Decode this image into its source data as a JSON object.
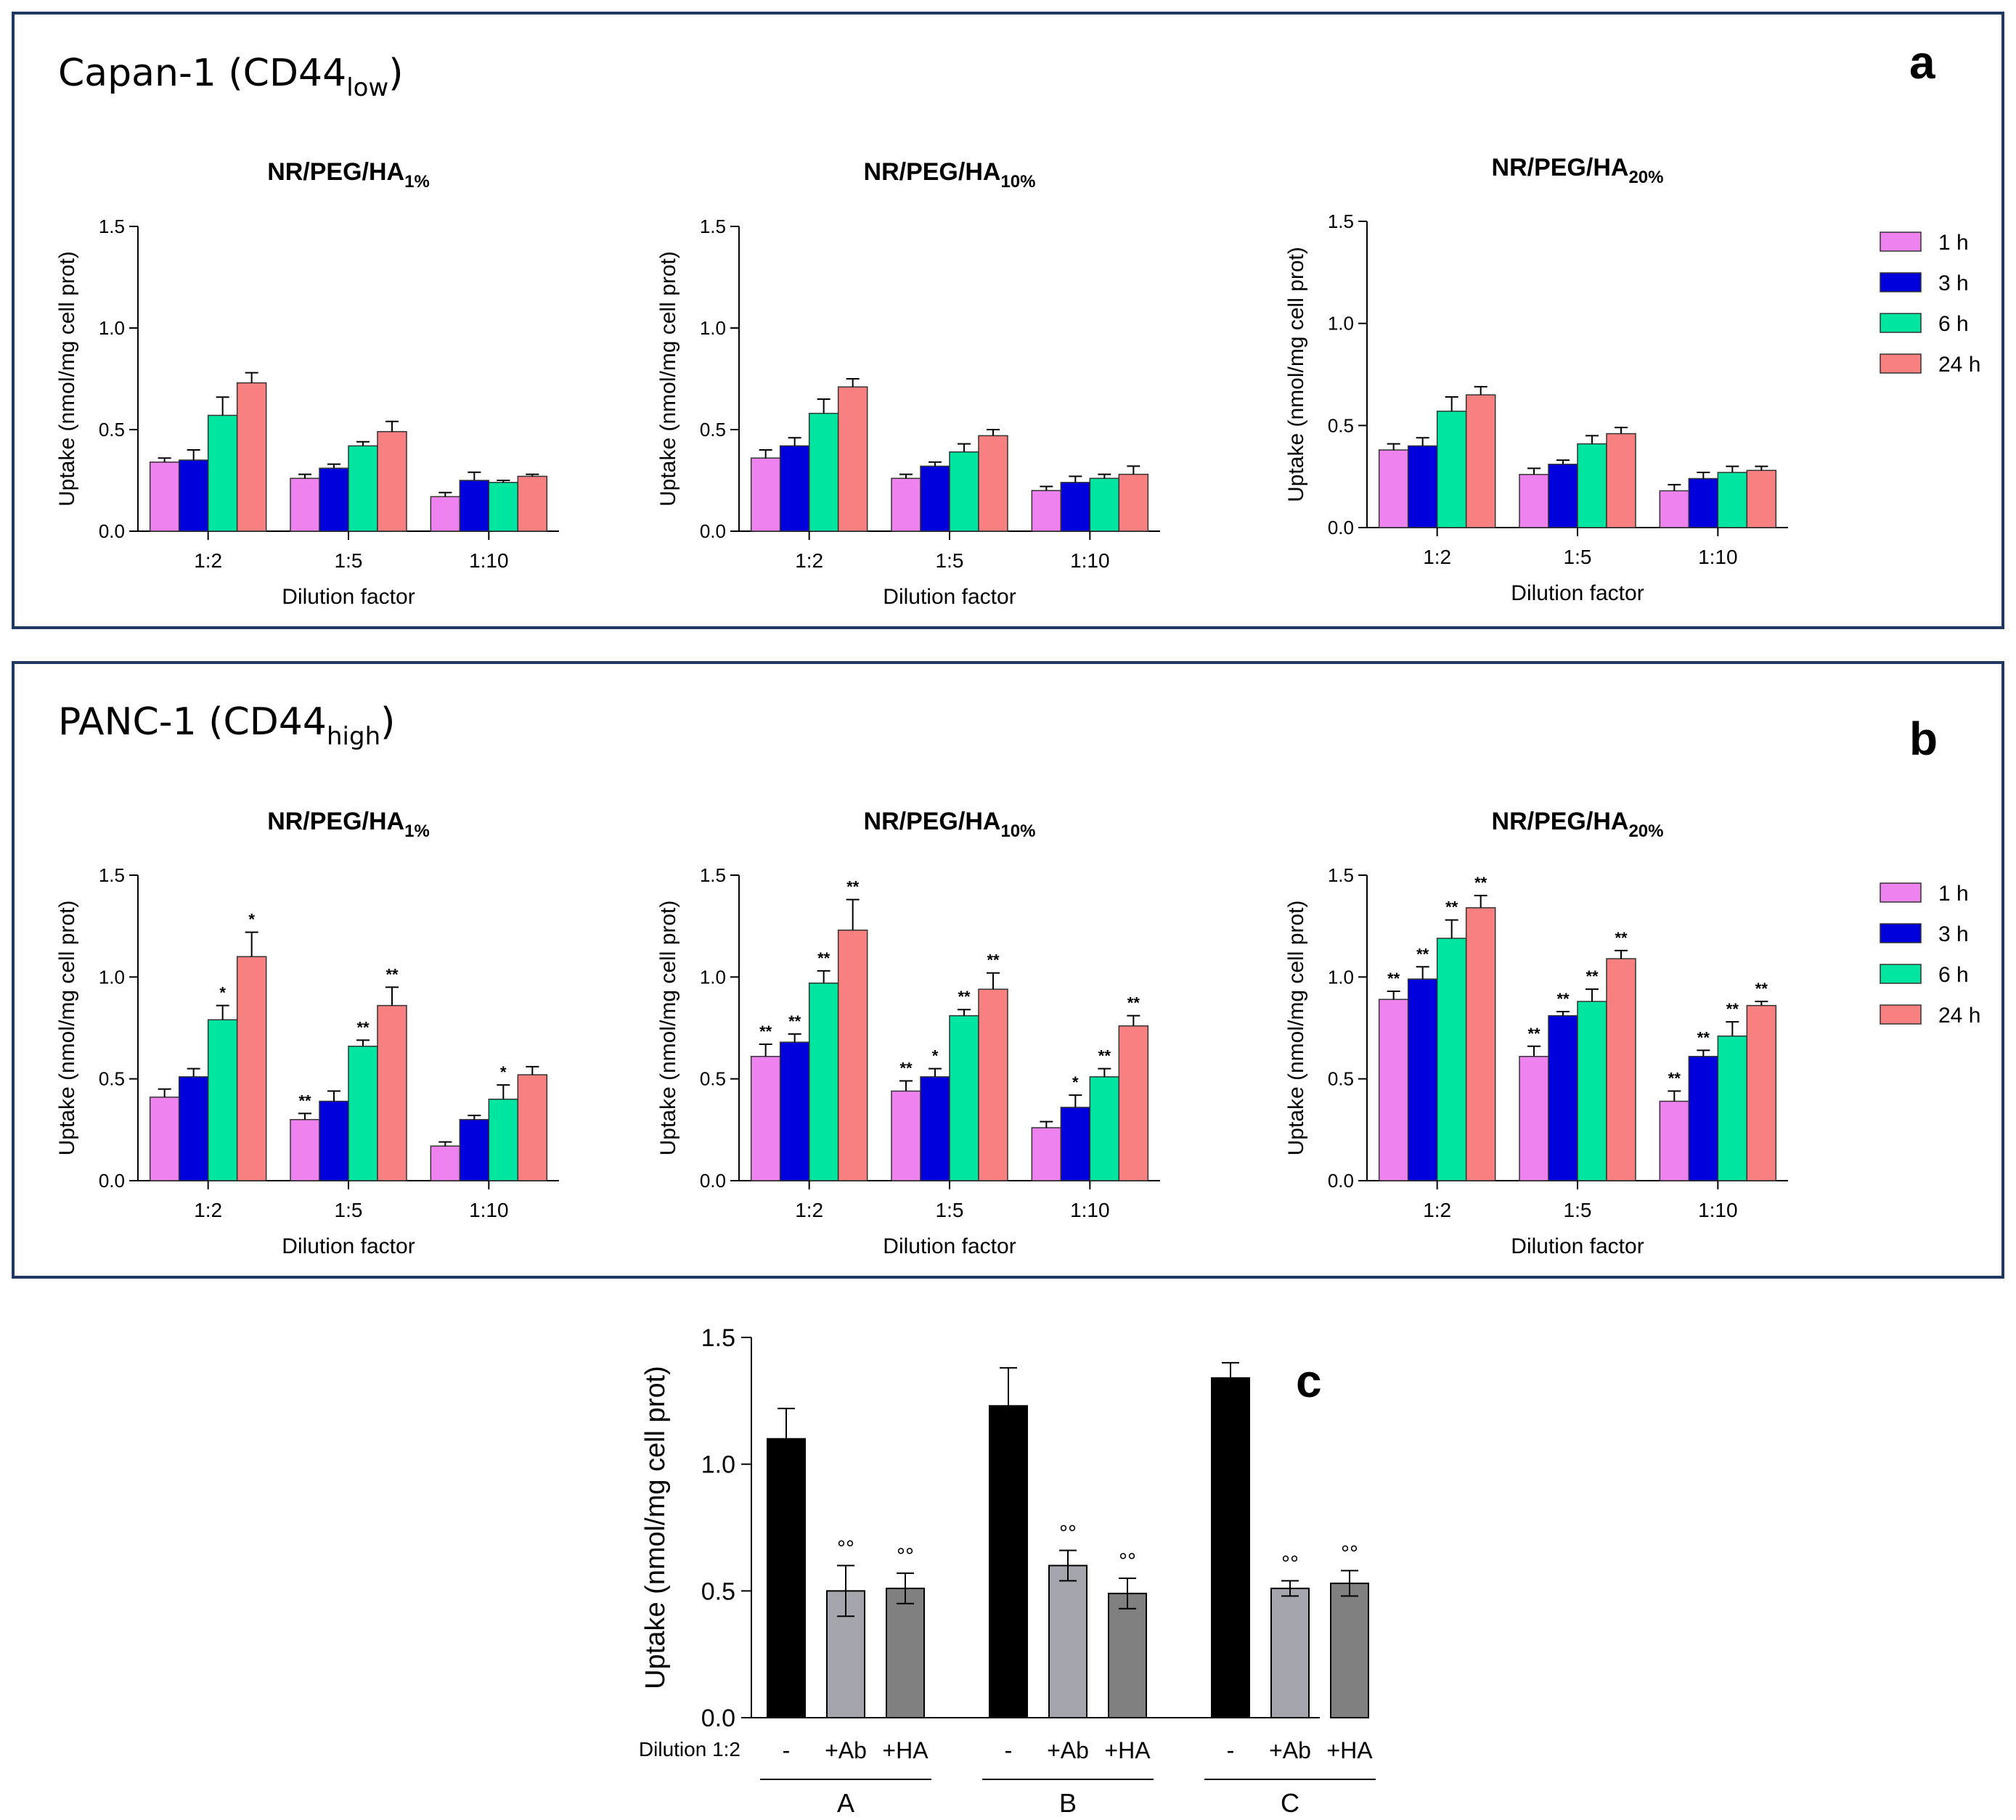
{
  "colors": {
    "1 h": "#ee82ee",
    "3 h": "#0000dd",
    "6 h": "#00e6a0",
    "24 h": "#f88080",
    "frame": "#1f3864",
    "c_bars": [
      "#000000",
      "#a5a5ad",
      "#808080"
    ]
  },
  "panel_a": {
    "title_main": "Capan-1 (CD44",
    "title_sub": "low",
    "title_close": ")",
    "letter": "a"
  },
  "panel_b": {
    "title_main": "PANC-1 (CD44",
    "title_sub": "high",
    "title_close": ")",
    "letter": "b"
  },
  "panel_c": {
    "letter": "c",
    "dilution_label": "Dilution 1:2"
  },
  "legend": [
    "1 h",
    "3 h",
    "6 h",
    "24 h"
  ],
  "chart_data": [
    {
      "panel": "a",
      "type": "bar",
      "title_main": "NR/PEG/HA",
      "title_sub": "1%",
      "categories": [
        "1:2",
        "1:5",
        "1:10"
      ],
      "xlabel": "Dilution factor",
      "ylabel": "Uptake (nmol/mg cell prot)",
      "ylim": [
        0,
        1.5
      ],
      "yticks": [
        "0.0",
        "0.5",
        "1.0",
        "1.5"
      ],
      "series": [
        {
          "name": "1 h",
          "values": [
            0.34,
            0.26,
            0.17
          ],
          "errors": [
            0.02,
            0.02,
            0.02
          ],
          "sig": [
            "",
            "",
            ""
          ]
        },
        {
          "name": "3 h",
          "values": [
            0.35,
            0.31,
            0.25
          ],
          "errors": [
            0.05,
            0.02,
            0.04
          ],
          "sig": [
            "",
            "",
            ""
          ]
        },
        {
          "name": "6 h",
          "values": [
            0.57,
            0.42,
            0.24
          ],
          "errors": [
            0.09,
            0.02,
            0.01
          ],
          "sig": [
            "",
            "",
            ""
          ]
        },
        {
          "name": "24 h",
          "values": [
            0.73,
            0.49,
            0.27
          ],
          "errors": [
            0.05,
            0.05,
            0.01
          ],
          "sig": [
            "",
            "",
            ""
          ]
        }
      ]
    },
    {
      "panel": "a",
      "type": "bar",
      "title_main": "NR/PEG/HA",
      "title_sub": "10%",
      "categories": [
        "1:2",
        "1:5",
        "1:10"
      ],
      "xlabel": "Dilution factor",
      "ylabel": "Uptake (nmol/mg cell prot)",
      "ylim": [
        0,
        1.5
      ],
      "yticks": [
        "0.0",
        "0.5",
        "1.0",
        "1.5"
      ],
      "series": [
        {
          "name": "1 h",
          "values": [
            0.36,
            0.26,
            0.2
          ],
          "errors": [
            0.04,
            0.02,
            0.02
          ],
          "sig": [
            "",
            "",
            ""
          ]
        },
        {
          "name": "3 h",
          "values": [
            0.42,
            0.32,
            0.24
          ],
          "errors": [
            0.04,
            0.02,
            0.03
          ],
          "sig": [
            "",
            "",
            ""
          ]
        },
        {
          "name": "6 h",
          "values": [
            0.58,
            0.39,
            0.26
          ],
          "errors": [
            0.07,
            0.04,
            0.02
          ],
          "sig": [
            "",
            "",
            ""
          ]
        },
        {
          "name": "24 h",
          "values": [
            0.71,
            0.47,
            0.28
          ],
          "errors": [
            0.04,
            0.03,
            0.04
          ],
          "sig": [
            "",
            "",
            ""
          ]
        }
      ]
    },
    {
      "panel": "a",
      "type": "bar",
      "title_main": "NR/PEG/HA",
      "title_sub": "20%",
      "categories": [
        "1:2",
        "1:5",
        "1:10"
      ],
      "xlabel": "Dilution factor",
      "ylabel": "Uptake (nmol/mg cell prot)",
      "ylim": [
        0,
        1.5
      ],
      "yticks": [
        "0.0",
        "0.5",
        "1.0",
        "1.5"
      ],
      "series": [
        {
          "name": "1 h",
          "values": [
            0.38,
            0.26,
            0.18
          ],
          "errors": [
            0.03,
            0.03,
            0.03
          ],
          "sig": [
            "",
            "",
            ""
          ]
        },
        {
          "name": "3 h",
          "values": [
            0.4,
            0.31,
            0.24
          ],
          "errors": [
            0.04,
            0.02,
            0.03
          ],
          "sig": [
            "",
            "",
            ""
          ]
        },
        {
          "name": "6 h",
          "values": [
            0.57,
            0.41,
            0.27
          ],
          "errors": [
            0.07,
            0.04,
            0.03
          ],
          "sig": [
            "",
            "",
            ""
          ]
        },
        {
          "name": "24 h",
          "values": [
            0.65,
            0.46,
            0.28
          ],
          "errors": [
            0.04,
            0.03,
            0.02
          ],
          "sig": [
            "",
            "",
            ""
          ]
        }
      ]
    },
    {
      "panel": "b",
      "type": "bar",
      "title_main": "NR/PEG/HA",
      "title_sub": "1%",
      "categories": [
        "1:2",
        "1:5",
        "1:10"
      ],
      "xlabel": "Dilution factor",
      "ylabel": "Uptake (nmol/mg cell prot)",
      "ylim": [
        0,
        1.5
      ],
      "yticks": [
        "0.0",
        "0.5",
        "1.0",
        "1.5"
      ],
      "series": [
        {
          "name": "1 h",
          "values": [
            0.41,
            0.3,
            0.17
          ],
          "errors": [
            0.04,
            0.03,
            0.02
          ],
          "sig": [
            "",
            "**",
            ""
          ]
        },
        {
          "name": "3 h",
          "values": [
            0.51,
            0.39,
            0.3
          ],
          "errors": [
            0.04,
            0.05,
            0.02
          ],
          "sig": [
            "",
            "",
            ""
          ]
        },
        {
          "name": "6 h",
          "values": [
            0.79,
            0.66,
            0.4
          ],
          "errors": [
            0.07,
            0.03,
            0.07
          ],
          "sig": [
            "*",
            "**",
            "*"
          ]
        },
        {
          "name": "24 h",
          "values": [
            1.1,
            0.86,
            0.52
          ],
          "errors": [
            0.12,
            0.09,
            0.04
          ],
          "sig": [
            "*",
            "**",
            ""
          ]
        }
      ]
    },
    {
      "panel": "b",
      "type": "bar",
      "title_main": "NR/PEG/HA",
      "title_sub": "10%",
      "categories": [
        "1:2",
        "1:5",
        "1:10"
      ],
      "xlabel": "Dilution factor",
      "ylabel": "Uptake (nmol/mg cell prot)",
      "ylim": [
        0,
        1.5
      ],
      "yticks": [
        "0.0",
        "0.5",
        "1.0",
        "1.5"
      ],
      "series": [
        {
          "name": "1 h",
          "values": [
            0.61,
            0.44,
            0.26
          ],
          "errors": [
            0.06,
            0.05,
            0.03
          ],
          "sig": [
            "**",
            "**",
            ""
          ]
        },
        {
          "name": "3 h",
          "values": [
            0.68,
            0.51,
            0.36
          ],
          "errors": [
            0.04,
            0.04,
            0.06
          ],
          "sig": [
            "**",
            "*",
            "*"
          ]
        },
        {
          "name": "6 h",
          "values": [
            0.97,
            0.81,
            0.51
          ],
          "errors": [
            0.06,
            0.03,
            0.04
          ],
          "sig": [
            "**",
            "**",
            "**"
          ]
        },
        {
          "name": "24 h",
          "values": [
            1.23,
            0.94,
            0.76
          ],
          "errors": [
            0.15,
            0.08,
            0.05
          ],
          "sig": [
            "**",
            "**",
            "**"
          ]
        }
      ]
    },
    {
      "panel": "b",
      "type": "bar",
      "title_main": "NR/PEG/HA",
      "title_sub": "20%",
      "categories": [
        "1:2",
        "1:5",
        "1:10"
      ],
      "xlabel": "Dilution factor",
      "ylabel": "Uptake (nmol/mg cell prot)",
      "ylim": [
        0,
        1.5
      ],
      "yticks": [
        "0.0",
        "0.5",
        "1.0",
        "1.5"
      ],
      "series": [
        {
          "name": "1 h",
          "values": [
            0.89,
            0.61,
            0.39
          ],
          "errors": [
            0.04,
            0.05,
            0.05
          ],
          "sig": [
            "**",
            "**",
            "**"
          ]
        },
        {
          "name": "3 h",
          "values": [
            0.99,
            0.81,
            0.61
          ],
          "errors": [
            0.06,
            0.02,
            0.03
          ],
          "sig": [
            "**",
            "**",
            "**"
          ]
        },
        {
          "name": "6 h",
          "values": [
            1.19,
            0.88,
            0.71
          ],
          "errors": [
            0.09,
            0.06,
            0.07
          ],
          "sig": [
            "**",
            "**",
            "**"
          ]
        },
        {
          "name": "24 h",
          "values": [
            1.34,
            1.09,
            0.86
          ],
          "errors": [
            0.06,
            0.04,
            0.02
          ],
          "sig": [
            "**",
            "**",
            "**"
          ]
        }
      ]
    },
    {
      "panel": "c",
      "type": "bar",
      "groups": [
        "A",
        "B",
        "C"
      ],
      "conditions": [
        "-",
        "+Ab",
        "+HA"
      ],
      "ylabel": "Uptake (nmol/mg cell prot)",
      "ylim": [
        0,
        1.5
      ],
      "yticks": [
        "0.0",
        "0.5",
        "1.0",
        "1.5"
      ],
      "values": [
        1.1,
        0.5,
        0.51,
        1.23,
        0.6,
        0.49,
        1.34,
        0.51,
        0.53
      ],
      "errors": [
        0.12,
        0.1,
        0.06,
        0.15,
        0.06,
        0.06,
        0.06,
        0.03,
        0.05
      ],
      "marks": [
        "",
        "°°",
        "°°",
        "",
        "°°",
        "°°",
        "",
        "°°",
        "°°"
      ]
    }
  ]
}
